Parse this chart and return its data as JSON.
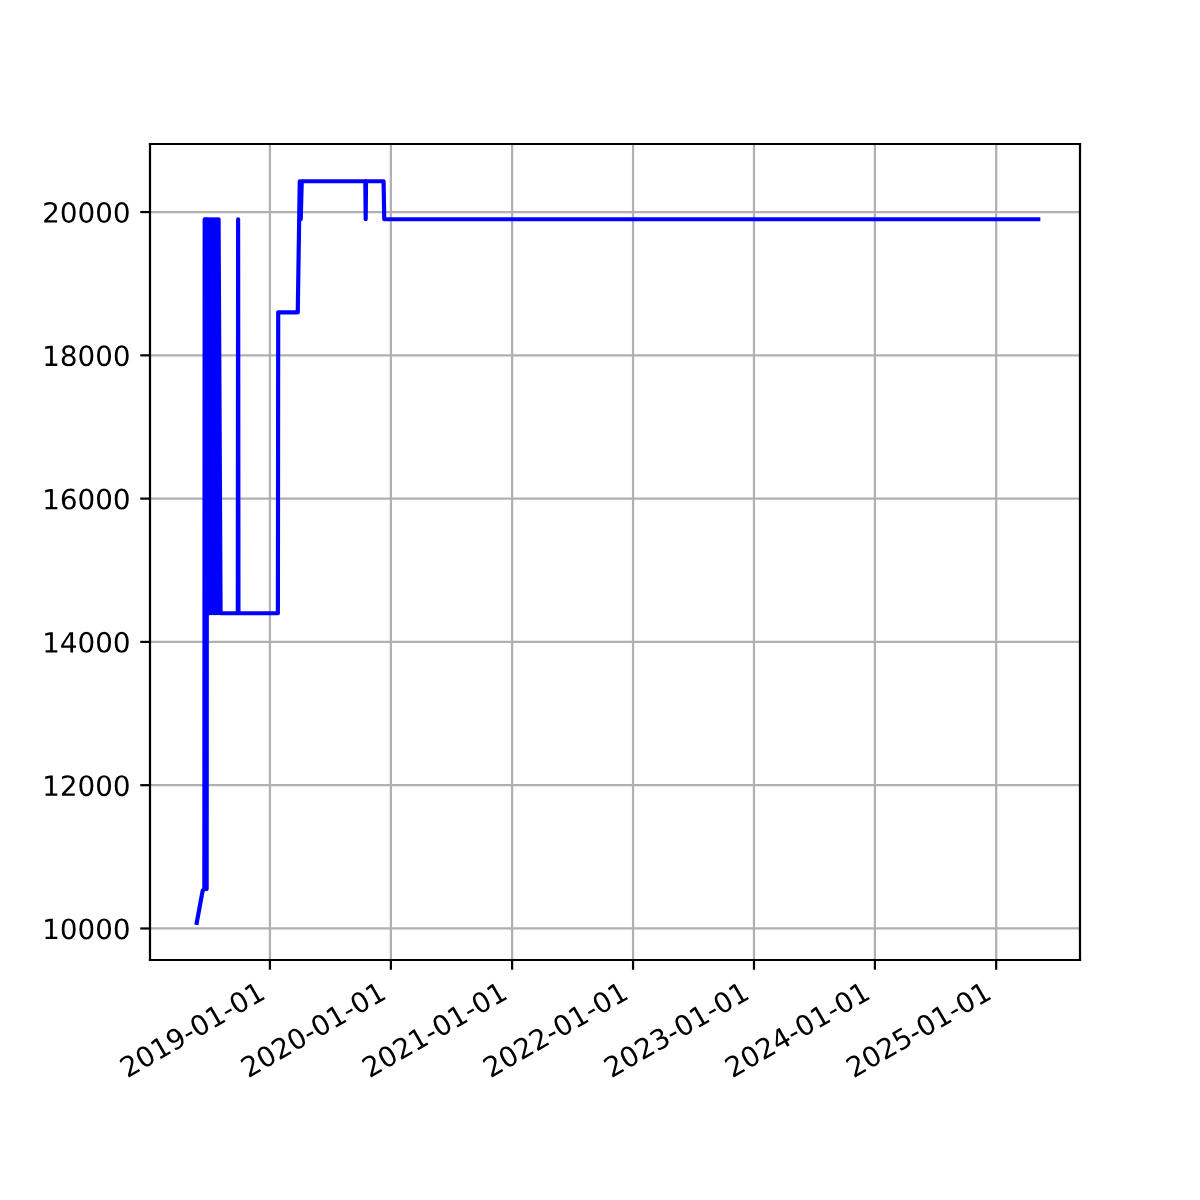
{
  "chart_data": {
    "type": "line",
    "color": "#0000ff",
    "x": [
      "2018-05-25",
      "2018-06-12",
      "2018-06-17",
      "2018-06-18",
      "2018-06-21",
      "2018-06-24",
      "2018-06-25",
      "2018-06-27",
      "2018-06-30",
      "2018-07-03",
      "2018-07-06",
      "2018-07-09",
      "2018-07-12",
      "2018-07-15",
      "2018-07-18",
      "2018-07-21",
      "2018-07-24",
      "2018-07-27",
      "2018-07-30",
      "2018-08-05",
      "2018-09-26",
      "2018-09-27",
      "2018-09-28",
      "2019-01-25",
      "2019-01-26",
      "2019-03-26",
      "2019-04-01",
      "2019-04-04",
      "2019-04-07",
      "2019-10-16",
      "2019-10-17",
      "2019-10-18",
      "2019-12-10",
      "2019-12-12",
      "2025-05-08"
    ],
    "values": [
      10080,
      10530,
      10550,
      19900,
      19900,
      10550,
      19900,
      14400,
      19900,
      14400,
      19900,
      14400,
      19900,
      14400,
      19900,
      14400,
      19900,
      14400,
      19900,
      14400,
      14400,
      19900,
      14400,
      14400,
      18600,
      18600,
      20430,
      19900,
      20430,
      20430,
      19900,
      20430,
      20430,
      19900,
      19900
    ],
    "xlim": [
      "2018-01-04",
      "2025-09-11"
    ],
    "xticks": [
      {
        "value": "2019-01-01",
        "label": "2019-01-01"
      },
      {
        "value": "2020-01-01",
        "label": "2020-01-01"
      },
      {
        "value": "2021-01-01",
        "label": "2021-01-01"
      },
      {
        "value": "2022-01-01",
        "label": "2022-01-01"
      },
      {
        "value": "2023-01-01",
        "label": "2023-01-01"
      },
      {
        "value": "2024-01-01",
        "label": "2024-01-01"
      },
      {
        "value": "2025-01-01",
        "label": "2025-01-01"
      }
    ],
    "ylim": [
      9560,
      20950
    ],
    "yticks": [
      10000,
      12000,
      14000,
      16000,
      18000,
      20000
    ],
    "grid": true,
    "line_style": "solid"
  }
}
